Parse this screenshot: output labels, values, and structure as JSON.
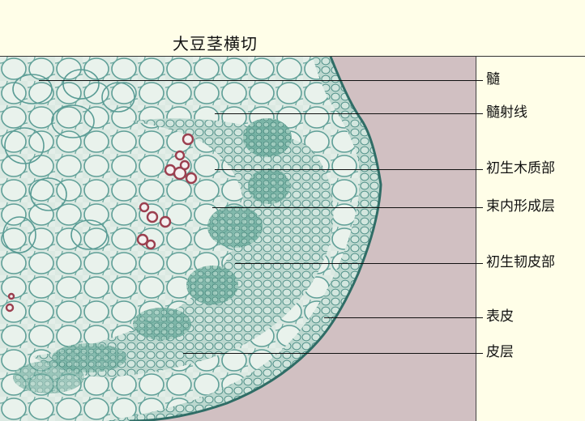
{
  "title": "大豆茎横切",
  "labels": {
    "pith": "髓",
    "pith_ray": "髓射线",
    "primary_xylem": "初生木质部",
    "fascicular_cambium": "束内形成层",
    "primary_phloem": "初生韧皮部",
    "epidermis": "表皮",
    "cortex": "皮层"
  },
  "colors": {
    "background": "#fffee8",
    "slide_background": "#d1c0c2",
    "tissue_light": "#dbe9e2",
    "tissue_stained": "#7fb7ad",
    "cell_wall": "#5a9c95",
    "xylem_vessel": "#9b3f4f"
  }
}
